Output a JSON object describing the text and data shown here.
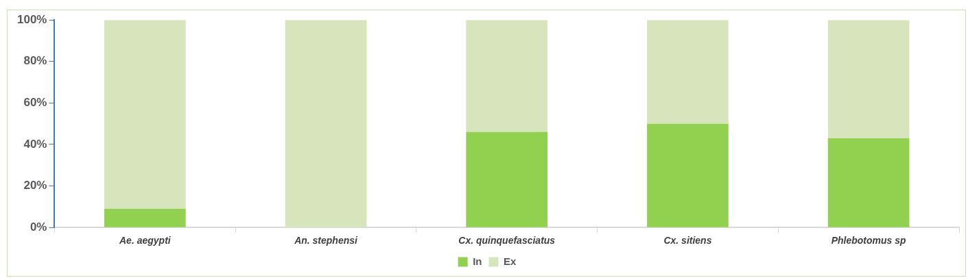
{
  "chart_data": {
    "type": "bar",
    "stacked": true,
    "categories": [
      "Ae. aegypti",
      "An. stephensi",
      "Cx. quinquefasciatus",
      "Cx. sitiens",
      "Phlebotomus sp"
    ],
    "series": [
      {
        "name": "In",
        "color": "#92d050",
        "values": [
          9,
          0,
          46,
          50,
          43
        ]
      },
      {
        "name": "Ex",
        "color": "#d8e4bc",
        "values": [
          91,
          100,
          54,
          50,
          57
        ]
      }
    ],
    "ylim": [
      0,
      100
    ],
    "yticks": [
      {
        "value": 0,
        "label": "0%"
      },
      {
        "value": 20,
        "label": "20%"
      },
      {
        "value": 40,
        "label": "40%"
      },
      {
        "value": 60,
        "label": "60%"
      },
      {
        "value": 80,
        "label": "80%"
      },
      {
        "value": 100,
        "label": "100%"
      }
    ],
    "grid": false,
    "legend": "bottom"
  }
}
